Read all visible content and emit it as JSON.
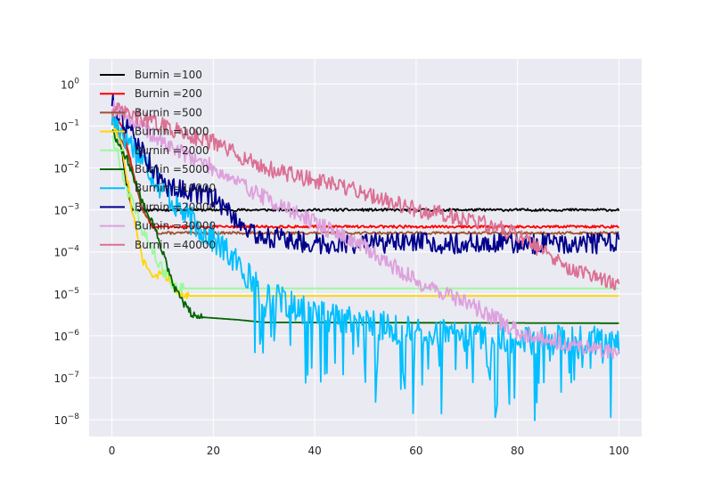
{
  "chart_data": {
    "type": "line",
    "title": "",
    "xlabel": "",
    "ylabel": "",
    "xlim": [
      -4.5,
      104.5
    ],
    "ylim_log10": [
      -8.4,
      0.6
    ],
    "yscale": "log",
    "grid": true,
    "background": "#EAEAF2",
    "legend_position": "upper-left",
    "x_ticks": [
      {
        "value": 0,
        "label": "0"
      },
      {
        "value": 20,
        "label": "20"
      },
      {
        "value": 40,
        "label": "40"
      },
      {
        "value": 60,
        "label": "60"
      },
      {
        "value": 80,
        "label": "80"
      },
      {
        "value": 100,
        "label": "100"
      }
    ],
    "y_ticks": [
      {
        "exp": 0,
        "label_base": "10",
        "label_exp": "0"
      },
      {
        "exp": -1,
        "label_base": "10",
        "label_exp": "−1"
      },
      {
        "exp": -2,
        "label_base": "10",
        "label_exp": "−2"
      },
      {
        "exp": -3,
        "label_base": "10",
        "label_exp": "−3"
      },
      {
        "exp": -4,
        "label_base": "10",
        "label_exp": "−4"
      },
      {
        "exp": -5,
        "label_base": "10",
        "label_exp": "−5"
      },
      {
        "exp": -6,
        "label_base": "10",
        "label_exp": "−6"
      },
      {
        "exp": -7,
        "label_base": "10",
        "label_exp": "−7"
      },
      {
        "exp": -8,
        "label_base": "10",
        "label_exp": "−8"
      }
    ],
    "series": [
      {
        "name": "Burnin =100",
        "color": "#000000",
        "profile": [
          [
            0,
            -0.8
          ],
          [
            1,
            -0.9
          ],
          [
            2,
            -1.6
          ],
          [
            3,
            -2.5
          ],
          [
            4,
            -3.0
          ],
          [
            100,
            -3.0
          ]
        ],
        "noise": 0.03,
        "seed": 11
      },
      {
        "name": "Burnin =200",
        "color": "#FF0000",
        "profile": [
          [
            0,
            -0.7
          ],
          [
            2,
            -1.0
          ],
          [
            4,
            -2.0
          ],
          [
            6,
            -3.0
          ],
          [
            8,
            -3.4
          ],
          [
            100,
            -3.4
          ]
        ],
        "noise": 0.03,
        "seed": 12
      },
      {
        "name": "Burnin =500",
        "color": "#A0522D",
        "profile": [
          [
            0,
            -0.9
          ],
          [
            3,
            -1.6
          ],
          [
            6,
            -3.0
          ],
          [
            9,
            -3.55
          ],
          [
            100,
            -3.55
          ]
        ],
        "noise": 0.03,
        "seed": 13
      },
      {
        "name": "Burnin =1000",
        "color": "#FFD700",
        "profile": [
          [
            0,
            -0.8
          ],
          [
            2,
            -1.5
          ],
          [
            4,
            -3.0
          ],
          [
            6,
            -4.2
          ],
          [
            8,
            -4.6
          ],
          [
            10,
            -4.5
          ],
          [
            13,
            -4.9
          ],
          [
            15,
            -5.05
          ],
          [
            100,
            -5.05
          ]
        ],
        "noise": 0.12,
        "noiseEnd": 15,
        "seed": 14
      },
      {
        "name": "Burnin =2000",
        "color": "#98FB98",
        "profile": [
          [
            0,
            -1.2
          ],
          [
            3,
            -2.5
          ],
          [
            6,
            -3.5
          ],
          [
            9,
            -4.2
          ],
          [
            12,
            -4.8
          ],
          [
            14,
            -4.87
          ],
          [
            100,
            -4.87
          ]
        ],
        "noise": 0.15,
        "noiseEnd": 14,
        "seed": 15
      },
      {
        "name": "Burnin =5000",
        "color": "#006400",
        "profile": [
          [
            0,
            -1.1
          ],
          [
            3,
            -1.8
          ],
          [
            6,
            -2.8
          ],
          [
            9,
            -3.6
          ],
          [
            12,
            -4.8
          ],
          [
            15,
            -5.4
          ],
          [
            17,
            -5.55
          ],
          [
            25,
            -5.62
          ],
          [
            30,
            -5.68
          ],
          [
            100,
            -5.7
          ]
        ],
        "noise": 0.1,
        "noiseEnd": 18,
        "seed": 16
      },
      {
        "name": "Burnin =10000",
        "color": "#00BFFF",
        "profile": [
          [
            0,
            -0.8
          ],
          [
            5,
            -1.6
          ],
          [
            10,
            -2.5
          ],
          [
            15,
            -3.2
          ],
          [
            20,
            -3.7
          ],
          [
            25,
            -4.3
          ],
          [
            30,
            -5.0
          ],
          [
            40,
            -5.5
          ],
          [
            50,
            -5.7
          ],
          [
            60,
            -5.9
          ],
          [
            70,
            -6.0
          ],
          [
            80,
            -6.1
          ],
          [
            90,
            -6.1
          ],
          [
            100,
            -6.1
          ]
        ],
        "noise": 0.35,
        "spikeStart": 28,
        "spikeDepth": 1.3,
        "seed": 17
      },
      {
        "name": "Burnin =20000",
        "color": "#00008B",
        "profile": [
          [
            0,
            -0.4
          ],
          [
            5,
            -1.4
          ],
          [
            10,
            -2.4
          ],
          [
            20,
            -2.7
          ],
          [
            28,
            -3.6
          ],
          [
            40,
            -3.8
          ],
          [
            60,
            -3.8
          ],
          [
            80,
            -3.8
          ],
          [
            100,
            -3.8
          ]
        ],
        "noise": 0.25,
        "seed": 18
      },
      {
        "name": "Burnin =30000",
        "color": "#DDA0DD",
        "profile": [
          [
            0,
            -0.5
          ],
          [
            10,
            -1.4
          ],
          [
            20,
            -2.0
          ],
          [
            30,
            -2.7
          ],
          [
            40,
            -3.3
          ],
          [
            50,
            -3.9
          ],
          [
            60,
            -4.7
          ],
          [
            70,
            -5.2
          ],
          [
            80,
            -5.9
          ],
          [
            90,
            -6.2
          ],
          [
            100,
            -6.4
          ]
        ],
        "noise": 0.2,
        "seed": 19
      },
      {
        "name": "Burnin =40000",
        "color": "#DB7093",
        "profile": [
          [
            0,
            -0.6
          ],
          [
            10,
            -1.0
          ],
          [
            20,
            -1.4
          ],
          [
            30,
            -2.0
          ],
          [
            40,
            -2.3
          ],
          [
            50,
            -2.6
          ],
          [
            60,
            -3.0
          ],
          [
            70,
            -3.2
          ],
          [
            80,
            -3.6
          ],
          [
            90,
            -4.4
          ],
          [
            100,
            -4.8
          ]
        ],
        "noise": 0.2,
        "seed": 20
      }
    ]
  }
}
